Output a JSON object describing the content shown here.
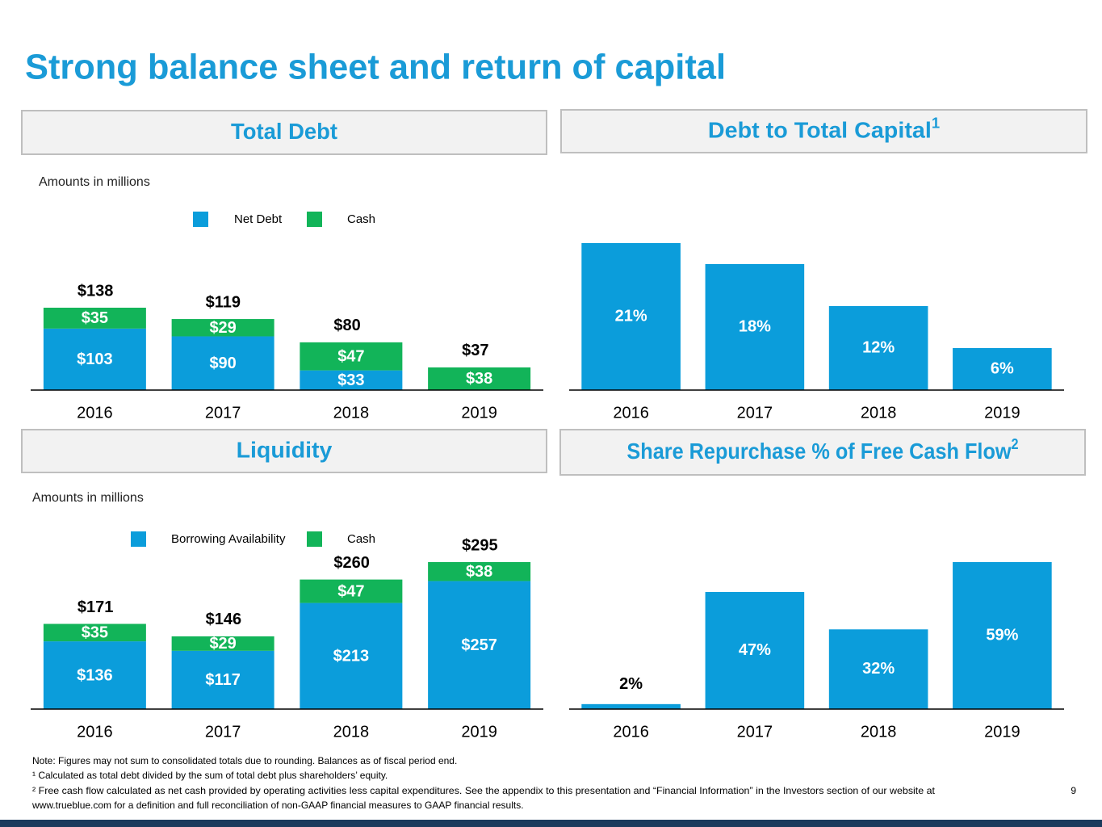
{
  "title": "Strong balance sheet and return of capital",
  "chart_data": [
    {
      "type": "stacked-bar",
      "title": "Total Debt",
      "subtitle": "Amounts in millions",
      "categories": [
        "2016",
        "2017",
        "2018",
        "2019"
      ],
      "series": [
        {
          "name": "Net Debt",
          "color": "#0b9ddb",
          "values": [
            103,
            90,
            33,
            null
          ],
          "value_labels": [
            "$103",
            "$90",
            "$33",
            null
          ]
        },
        {
          "name": "Cash",
          "color": "#12b459",
          "values": [
            35,
            29,
            47,
            38
          ],
          "value_labels": [
            "$35",
            "$29",
            "$47",
            "$38"
          ]
        }
      ],
      "totals": {
        "values": [
          138,
          119,
          80,
          37
        ],
        "value_labels": [
          "$138",
          "$119",
          "$80",
          "$37"
        ]
      }
    },
    {
      "type": "bar",
      "title": "Debt to Total Capital",
      "title_note": "1",
      "categories": [
        "2016",
        "2017",
        "2018",
        "2019"
      ],
      "color": "#0b9ddb",
      "values": [
        21,
        18,
        12,
        6
      ],
      "value_labels": [
        "21%",
        "18%",
        "12%",
        "6%"
      ]
    },
    {
      "type": "stacked-bar",
      "title": "Liquidity",
      "subtitle": "Amounts in millions",
      "categories": [
        "2016",
        "2017",
        "2018",
        "2019"
      ],
      "series": [
        {
          "name": "Borrowing Availability",
          "color": "#0b9ddb",
          "values": [
            136,
            117,
            213,
            257
          ],
          "value_labels": [
            "$136",
            "$117",
            "$213",
            "$257"
          ]
        },
        {
          "name": "Cash",
          "color": "#12b459",
          "values": [
            35,
            29,
            47,
            38
          ],
          "value_labels": [
            "$35",
            "$29",
            "$47",
            "$38"
          ]
        }
      ],
      "totals": {
        "values": [
          171,
          146,
          260,
          295
        ],
        "value_labels": [
          "$171",
          "$146",
          "$260",
          "$295"
        ]
      }
    },
    {
      "type": "bar",
      "title": "Share Repurchase % of Free Cash Flow",
      "title_note": "2",
      "categories": [
        "2016",
        "2017",
        "2018",
        "2019"
      ],
      "color": "#0b9ddb",
      "values": [
        2,
        47,
        32,
        59
      ],
      "value_labels": [
        "2%",
        "47%",
        "32%",
        "59%"
      ]
    }
  ],
  "notes": [
    "Note: Figures may not sum to consolidated totals due to rounding. Balances as of fiscal period end.",
    "¹ Calculated as total debt divided by the sum of total debt plus shareholders’ equity.",
    "² Free cash flow calculated as net cash provided by operating activities less capital expenditures. See the appendix to this presentation and “Financial Information” in the Investors section of our website at",
    "www.trueblue.com for a definition and full reconciliation of non-GAAP financial measures to GAAP financial results."
  ],
  "page_number": "9"
}
